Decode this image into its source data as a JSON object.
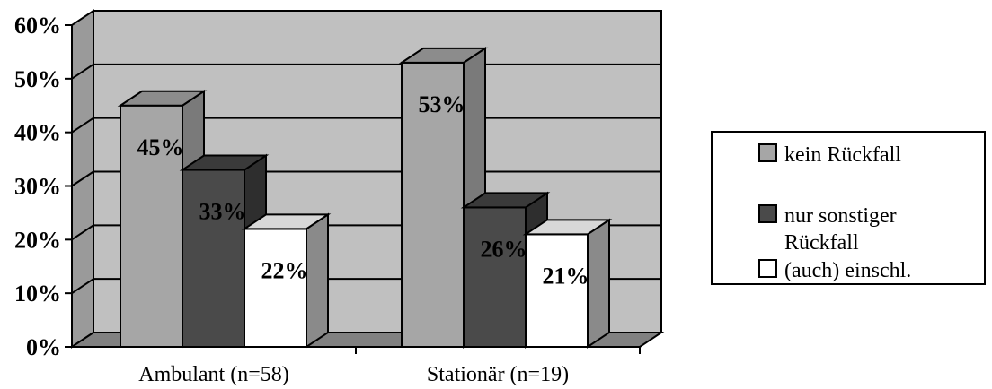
{
  "chart_data": {
    "type": "bar",
    "categories": [
      "Ambulant (n=58)",
      "Stationär (n=19)"
    ],
    "series": [
      {
        "name": "kein Rückfall",
        "values": [
          45,
          53
        ],
        "labels": [
          "45%",
          "53%"
        ],
        "color": "#a6a6a6",
        "side_color": "#7a7a7a",
        "top_color": "#8c8c8c"
      },
      {
        "name": "nur sonstiger Rückfall",
        "values": [
          33,
          26
        ],
        "labels": [
          "33%",
          "26%"
        ],
        "color": "#4a4a4a",
        "side_color": "#2e2e2e",
        "top_color": "#3a3a3a"
      },
      {
        "name": "(auch) einschl.",
        "values": [
          22,
          21
        ],
        "labels": [
          "22%",
          "21%"
        ],
        "color": "#ffffff",
        "side_color": "#8a8a8a",
        "top_color": "#d8d8d8"
      }
    ],
    "y_ticks": [
      "0%",
      "10%",
      "20%",
      "30%",
      "40%",
      "50%",
      "60%"
    ],
    "ylim": [
      0,
      60
    ],
    "grid": true,
    "legend_position": "right",
    "legend": [
      "kein Rückfall",
      "nur sonstiger",
      "Rückfall",
      "(auch) einschl."
    ],
    "plot_background": "#c0c0c0",
    "floor_color": "#808080"
  }
}
